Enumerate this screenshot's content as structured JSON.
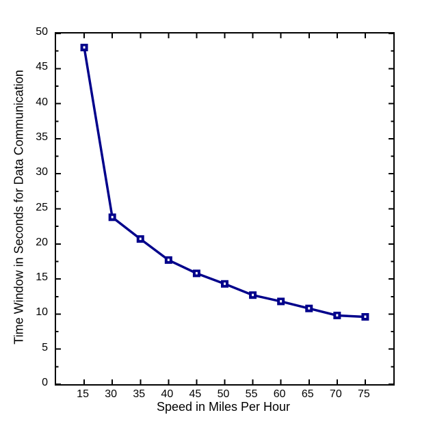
{
  "figure": {
    "background_color": "#ffffff",
    "axis_color": "#000000"
  },
  "chart_data": {
    "type": "line",
    "title": "",
    "xlabel": "Speed in Miles Per Hour",
    "ylabel": "Time Window in Seconds for Data Communication",
    "x_categories": [
      "15",
      "30",
      "35",
      "40",
      "45",
      "50",
      "55",
      "60",
      "65",
      "70",
      "75"
    ],
    "series": [
      {
        "name": "time-window-vs-speed",
        "values": [
          48.0,
          23.8,
          20.7,
          17.7,
          15.8,
          14.3,
          12.7,
          11.8,
          10.8,
          9.8,
          9.6
        ],
        "color": "#00008B",
        "marker": "square",
        "marker_size": 11,
        "line_width": 3.5
      }
    ],
    "ylim": [
      0,
      50
    ],
    "y_major_ticks": [
      "0",
      "5",
      "10",
      "15",
      "20",
      "25",
      "30",
      "35",
      "40",
      "45",
      "50"
    ],
    "y_minor_tick_step": 2.5,
    "x_spacing": "equal-categories",
    "grid": false,
    "legend": null,
    "box": true,
    "tick_direction": "in"
  }
}
